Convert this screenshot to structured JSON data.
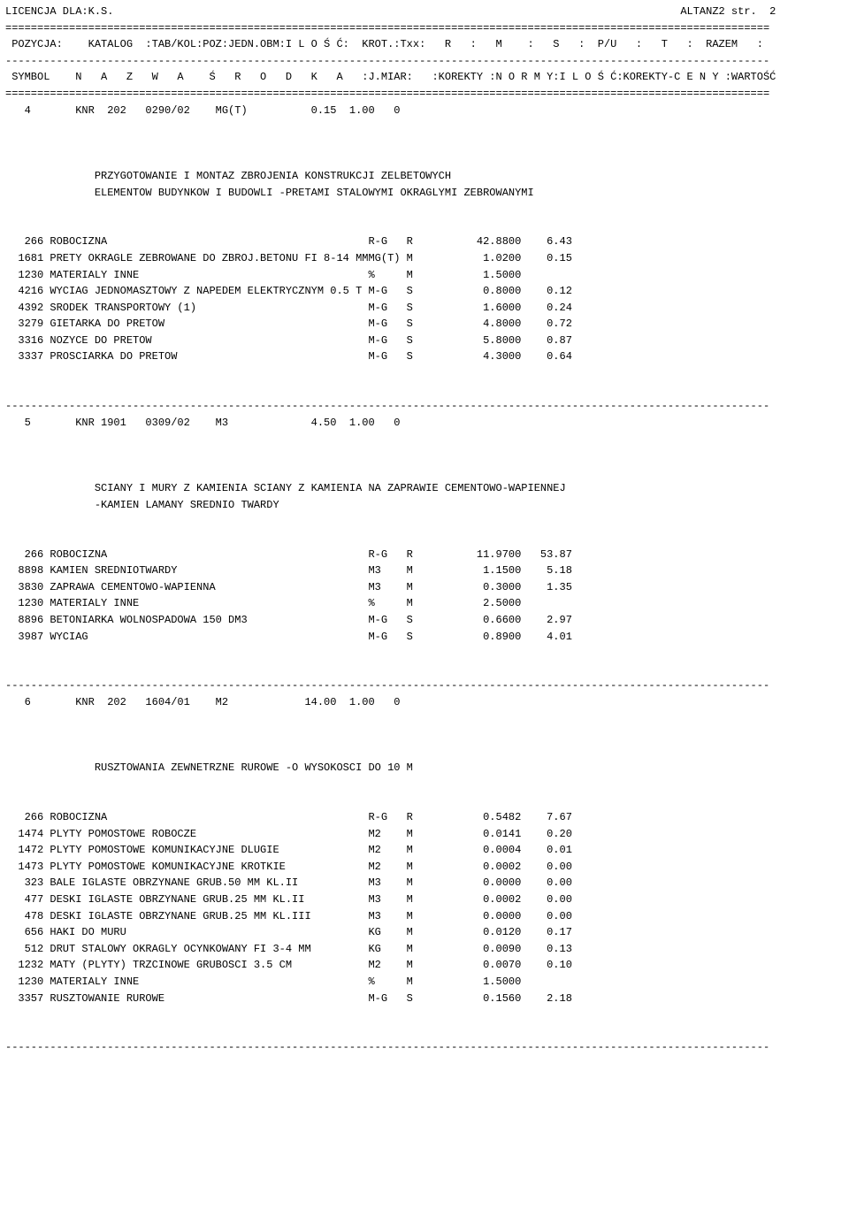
{
  "license": "LICENCJA DLA:K.S.",
  "fileref": "ALTANZ2 str.  2",
  "ruleEq": "========================================================================================================================",
  "ruleDash": "------------------------------------------------------------------------------------------------------------------------",
  "hdr1": " POZYCJA:    KATALOG  :TAB/KOL:POZ:JEDN.OBM:I L O Ś Ć:  KROT.:Txx:   R   :   M    :   S   :  P/U   :   T   :  RAZEM   :",
  "hdr2": " SYMBOL    N   A   Z   W   A    Ś   R   O   D   K   A   :J.MIAR:   :KOREKTY :N O R M Y:I L O Ś Ć:KOREKTY-C E N Y :WARTOŚĆ",
  "positions": [
    {
      "head": "   4       KNR  202   0290/02    MG(T)          0.15  1.00   0",
      "desc": [
        "              PRZYGOTOWANIE I MONTAZ ZBROJENIA KONSTRUKCJI ZELBETOWYCH",
        "              ELEMENTOW BUDYNKOW I BUDOWLI -PRETAMI STALOWYMI OKRAGLYMI ZEBROWANYMI"
      ],
      "rows": [
        {
          "code": "266",
          "name": "ROBOCIZNA",
          "unit": "R-G",
          "type": "R",
          "norm": "42.8800",
          "qty": "6.43"
        },
        {
          "code": "1681",
          "name": "PRETY OKRAGLE ZEBROWANE DO ZBROJ.BETONU FI 8-14 MM",
          "unit": "MG(T)",
          "type": "M",
          "norm": "1.0200",
          "qty": "0.15"
        },
        {
          "code": "1230",
          "name": "MATERIALY INNE",
          "unit": "%",
          "type": "M",
          "norm": "1.5000",
          "qty": ""
        },
        {
          "code": "4216",
          "name": "WYCIAG JEDNOMASZTOWY Z NAPEDEM ELEKTRYCZNYM 0.5 T",
          "unit": "M-G",
          "type": "S",
          "norm": "0.8000",
          "qty": "0.12"
        },
        {
          "code": "4392",
          "name": "SRODEK TRANSPORTOWY (1)",
          "unit": "M-G",
          "type": "S",
          "norm": "1.6000",
          "qty": "0.24"
        },
        {
          "code": "3279",
          "name": "GIETARKA DO PRETOW",
          "unit": "M-G",
          "type": "S",
          "norm": "4.8000",
          "qty": "0.72"
        },
        {
          "code": "3316",
          "name": "NOZYCE DO PRETOW",
          "unit": "M-G",
          "type": "S",
          "norm": "5.8000",
          "qty": "0.87"
        },
        {
          "code": "3337",
          "name": "PROSCIARKA DO PRETOW",
          "unit": "M-G",
          "type": "S",
          "norm": "4.3000",
          "qty": "0.64"
        }
      ]
    },
    {
      "head": "   5       KNR 1901   0309/02    M3             4.50  1.00   0",
      "desc": [
        "              SCIANY I MURY Z KAMIENIA SCIANY Z KAMIENIA NA ZAPRAWIE CEMENTOWO-WAPIENNEJ",
        "              -KAMIEN LAMANY SREDNIO TWARDY"
      ],
      "rows": [
        {
          "code": "266",
          "name": "ROBOCIZNA",
          "unit": "R-G",
          "type": "R",
          "norm": "11.9700",
          "qty": "53.87"
        },
        {
          "code": "8898",
          "name": "KAMIEN SREDNIOTWARDY",
          "unit": "M3",
          "type": "M",
          "norm": "1.1500",
          "qty": "5.18"
        },
        {
          "code": "3830",
          "name": "ZAPRAWA CEMENTOWO-WAPIENNA",
          "unit": "M3",
          "type": "M",
          "norm": "0.3000",
          "qty": "1.35"
        },
        {
          "code": "1230",
          "name": "MATERIALY INNE",
          "unit": "%",
          "type": "M",
          "norm": "2.5000",
          "qty": ""
        },
        {
          "code": "8896",
          "name": "BETONIARKA WOLNOSPADOWA 150 DM3",
          "unit": "M-G",
          "type": "S",
          "norm": "0.6600",
          "qty": "2.97"
        },
        {
          "code": "3987",
          "name": "WYCIAG",
          "unit": "M-G",
          "type": "S",
          "norm": "0.8900",
          "qty": "4.01"
        }
      ]
    },
    {
      "head": "   6       KNR  202   1604/01    M2            14.00  1.00   0",
      "desc": [
        "              RUSZTOWANIA ZEWNETRZNE RUROWE -O WYSOKOSCI DO 10 M"
      ],
      "rows": [
        {
          "code": "266",
          "name": "ROBOCIZNA",
          "unit": "R-G",
          "type": "R",
          "norm": "0.5482",
          "qty": "7.67"
        },
        {
          "code": "1474",
          "name": "PLYTY POMOSTOWE ROBOCZE",
          "unit": "M2",
          "type": "M",
          "norm": "0.0141",
          "qty": "0.20"
        },
        {
          "code": "1472",
          "name": "PLYTY POMOSTOWE KOMUNIKACYJNE DLUGIE",
          "unit": "M2",
          "type": "M",
          "norm": "0.0004",
          "qty": "0.01"
        },
        {
          "code": "1473",
          "name": "PLYTY POMOSTOWE KOMUNIKACYJNE KROTKIE",
          "unit": "M2",
          "type": "M",
          "norm": "0.0002",
          "qty": "0.00"
        },
        {
          "code": "323",
          "name": "BALE IGLASTE OBRZYNANE GRUB.50 MM KL.II",
          "unit": "M3",
          "type": "M",
          "norm": "0.0000",
          "qty": "0.00"
        },
        {
          "code": "477",
          "name": "DESKI IGLASTE OBRZYNANE GRUB.25 MM KL.II",
          "unit": "M3",
          "type": "M",
          "norm": "0.0002",
          "qty": "0.00"
        },
        {
          "code": "478",
          "name": "DESKI IGLASTE OBRZYNANE GRUB.25 MM KL.III",
          "unit": "M3",
          "type": "M",
          "norm": "0.0000",
          "qty": "0.00"
        },
        {
          "code": "656",
          "name": "HAKI DO MURU",
          "unit": "KG",
          "type": "M",
          "norm": "0.0120",
          "qty": "0.17"
        },
        {
          "code": "512",
          "name": "DRUT STALOWY OKRAGLY OCYNKOWANY FI 3-4 MM",
          "unit": "KG",
          "type": "M",
          "norm": "0.0090",
          "qty": "0.13"
        },
        {
          "code": "1232",
          "name": "MATY (PLYTY) TRZCINOWE GRUBOSCI 3.5 CM",
          "unit": "M2",
          "type": "M",
          "norm": "0.0070",
          "qty": "0.10"
        },
        {
          "code": "1230",
          "name": "MATERIALY INNE",
          "unit": "%",
          "type": "M",
          "norm": "1.5000",
          "qty": ""
        },
        {
          "code": "3357",
          "name": "RUSZTOWANIE RUROWE",
          "unit": "M-G",
          "type": "S",
          "norm": "0.1560",
          "qty": "2.18"
        }
      ]
    }
  ]
}
